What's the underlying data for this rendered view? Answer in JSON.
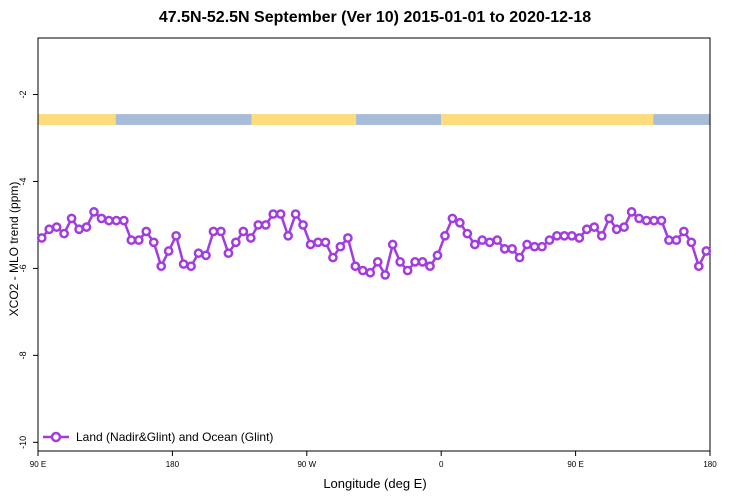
{
  "chart_data": {
    "type": "line",
    "title": "47.5N-52.5N September (Ver 10)   2015-01-01 to 2020-12-18",
    "xlabel": "Longitude (deg E)",
    "ylabel": "XCO2 - MLO trend (ppm)",
    "xlim": [
      90,
      540
    ],
    "ylim": [
      -10.2,
      -0.7
    ],
    "x_ticks": [
      {
        "value": 90,
        "label": "90 E"
      },
      {
        "value": 180,
        "label": "180"
      },
      {
        "value": 270,
        "label": "90 W"
      },
      {
        "value": 360,
        "label": "0"
      },
      {
        "value": 450,
        "label": "90 E"
      },
      {
        "value": 540,
        "label": "180"
      }
    ],
    "y_ticks": [
      {
        "value": -2,
        "label": "-2"
      },
      {
        "value": -4,
        "label": "-4"
      },
      {
        "value": -6,
        "label": "-6"
      },
      {
        "value": -8,
        "label": "-8"
      },
      {
        "value": -10,
        "label": "-10"
      }
    ],
    "grid": false,
    "legend_position": "bottom-left",
    "land_ocean_strip": {
      "y_range": [
        -2.7,
        -2.45
      ],
      "land_color": "#fddc7c",
      "ocean_color": "#a8bcd8",
      "segments": [
        {
          "type": "land",
          "start": 90,
          "end": 142
        },
        {
          "type": "ocean",
          "start": 142,
          "end": 233
        },
        {
          "type": "land",
          "start": 233,
          "end": 303
        },
        {
          "type": "ocean",
          "start": 303,
          "end": 360
        },
        {
          "type": "land",
          "start": 360,
          "end": 502
        },
        {
          "type": "ocean",
          "start": 502,
          "end": 540
        }
      ]
    },
    "series": [
      {
        "name": "Land (Nadir&Glint) and Ocean (Glint)",
        "color": "#a23ce0",
        "marker": "open-circle",
        "x": [
          92.5,
          97.5,
          102.5,
          107.5,
          112.5,
          117.5,
          122.5,
          127.5,
          132.5,
          137.5,
          142.5,
          147.5,
          152.5,
          157.5,
          162.5,
          167.5,
          172.5,
          177.5,
          182.5,
          187.5,
          192.5,
          197.5,
          202.5,
          207.5,
          212.5,
          217.5,
          222.5,
          227.5,
          232.5,
          237.5,
          242.5,
          247.5,
          252.5,
          257.5,
          262.5,
          267.5,
          272.5,
          277.5,
          282.5,
          287.5,
          292.5,
          297.5,
          302.5,
          307.5,
          312.5,
          317.5,
          322.5,
          327.5,
          332.5,
          337.5,
          342.5,
          347.5,
          352.5,
          357.5,
          362.5,
          367.5,
          372.5,
          377.5,
          382.5,
          387.5,
          392.5,
          397.5,
          402.5,
          407.5,
          412.5,
          417.5,
          422.5,
          427.5,
          432.5,
          437.5,
          442.5,
          447.5,
          452.5,
          457.5,
          462.5,
          467.5,
          472.5,
          477.5,
          482.5,
          487.5,
          492.5,
          497.5,
          502.5,
          507.5,
          512.5,
          517.5,
          522.5,
          527.5,
          532.5,
          537.5
        ],
        "values": [
          -5.3,
          -5.1,
          -5.05,
          -5.2,
          -4.85,
          -5.1,
          -5.05,
          -4.7,
          -4.85,
          -4.9,
          -4.9,
          -4.9,
          -5.35,
          -5.35,
          -5.15,
          -5.4,
          -5.95,
          -5.6,
          -5.25,
          -5.9,
          -5.95,
          -5.65,
          -5.7,
          -5.15,
          -5.15,
          -5.65,
          -5.4,
          -5.15,
          -5.3,
          -5.0,
          -5.0,
          -4.75,
          -4.75,
          -5.25,
          -4.75,
          -5.0,
          -5.45,
          -5.4,
          -5.4,
          -5.75,
          -5.5,
          -5.3,
          -5.95,
          -6.05,
          -6.1,
          -5.85,
          -6.15,
          -5.45,
          -5.85,
          -6.05,
          -5.85,
          -5.85,
          -5.95,
          -5.7,
          -5.25,
          -4.85,
          -4.95,
          -5.2,
          -5.45,
          -5.35,
          -5.4,
          -5.35,
          -5.55,
          -5.55,
          -5.75,
          -5.45,
          -5.5,
          -5.5,
          -5.35,
          -5.25,
          -5.25,
          -5.25,
          -5.3,
          -5.1,
          -5.05,
          -5.25,
          -4.85,
          -5.1,
          -5.05,
          -4.7,
          -4.85,
          -4.9,
          -4.9,
          -4.9,
          -5.35,
          -5.35,
          -5.15,
          -5.4,
          -5.95,
          -5.6
        ]
      }
    ]
  }
}
